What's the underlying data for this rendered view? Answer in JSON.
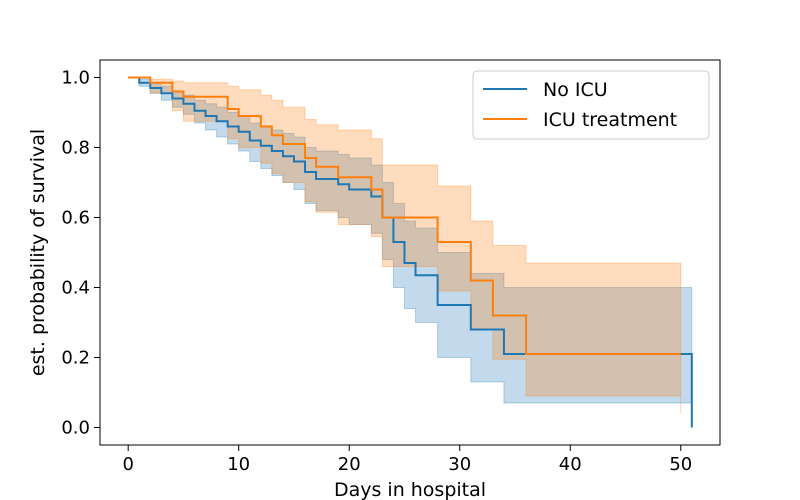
{
  "chart_data": {
    "type": "line",
    "title": "",
    "xlabel": "Days in hospital",
    "ylabel": "est. probability of survival",
    "xlim": [
      -2.55,
      53.55
    ],
    "ylim": [
      -0.05,
      1.05
    ],
    "xticks": [
      0,
      10,
      20,
      30,
      40,
      50
    ],
    "yticks": [
      0.0,
      0.2,
      0.4,
      0.6,
      0.8,
      1.0
    ],
    "xtick_labels": [
      "0",
      "10",
      "20",
      "30",
      "40",
      "50"
    ],
    "ytick_labels": [
      "0.0",
      "0.2",
      "0.4",
      "0.6",
      "0.8",
      "1.0"
    ],
    "grid": false,
    "legend_position": "top-right",
    "step": "post",
    "series": [
      {
        "name": "No ICU",
        "color": "#1f77b4",
        "band_color": "#1f77b4",
        "x": [
          0,
          1,
          2,
          3,
          4,
          5,
          6,
          7,
          8,
          9,
          10,
          11,
          12,
          13,
          14,
          15,
          16,
          17,
          19,
          20,
          22,
          23,
          24,
          25,
          26,
          28,
          31,
          34,
          51
        ],
        "y": [
          1.0,
          0.985,
          0.97,
          0.955,
          0.94,
          0.925,
          0.905,
          0.89,
          0.875,
          0.86,
          0.845,
          0.82,
          0.805,
          0.79,
          0.775,
          0.76,
          0.73,
          0.71,
          0.695,
          0.68,
          0.66,
          0.6,
          0.53,
          0.47,
          0.435,
          0.35,
          0.28,
          0.21,
          0.0
        ],
        "lower": [
          1.0,
          0.975,
          0.955,
          0.935,
          0.915,
          0.895,
          0.87,
          0.85,
          0.83,
          0.81,
          0.79,
          0.76,
          0.74,
          0.72,
          0.7,
          0.68,
          0.64,
          0.62,
          0.6,
          0.58,
          0.555,
          0.48,
          0.4,
          0.34,
          0.3,
          0.2,
          0.13,
          0.07,
          0.0
        ],
        "upper": [
          1.0,
          0.995,
          0.985,
          0.975,
          0.96,
          0.95,
          0.935,
          0.925,
          0.915,
          0.9,
          0.89,
          0.87,
          0.86,
          0.85,
          0.84,
          0.83,
          0.8,
          0.79,
          0.78,
          0.77,
          0.75,
          0.7,
          0.64,
          0.59,
          0.57,
          0.5,
          0.44,
          0.4,
          0.0
        ]
      },
      {
        "name": "ICU treatment",
        "color": "#ff7f0e",
        "band_color": "#ff7f0e",
        "x": [
          0,
          2,
          4,
          5,
          9,
          10,
          12,
          13,
          14,
          16,
          17,
          19,
          22,
          23,
          28,
          31,
          33,
          36,
          50
        ],
        "y": [
          1.0,
          0.985,
          0.96,
          0.945,
          0.91,
          0.89,
          0.86,
          0.835,
          0.81,
          0.77,
          0.745,
          0.715,
          0.68,
          0.6,
          0.53,
          0.42,
          0.32,
          0.21,
          0.21
        ],
        "lower": [
          1.0,
          0.955,
          0.905,
          0.875,
          0.825,
          0.8,
          0.755,
          0.725,
          0.7,
          0.645,
          0.615,
          0.58,
          0.545,
          0.46,
          0.39,
          0.28,
          0.195,
          0.09,
          0.04
        ],
        "upper": [
          1.0,
          0.995,
          0.99,
          0.985,
          0.975,
          0.965,
          0.95,
          0.935,
          0.915,
          0.88,
          0.865,
          0.85,
          0.825,
          0.75,
          0.69,
          0.59,
          0.52,
          0.47,
          0.47
        ]
      }
    ]
  }
}
